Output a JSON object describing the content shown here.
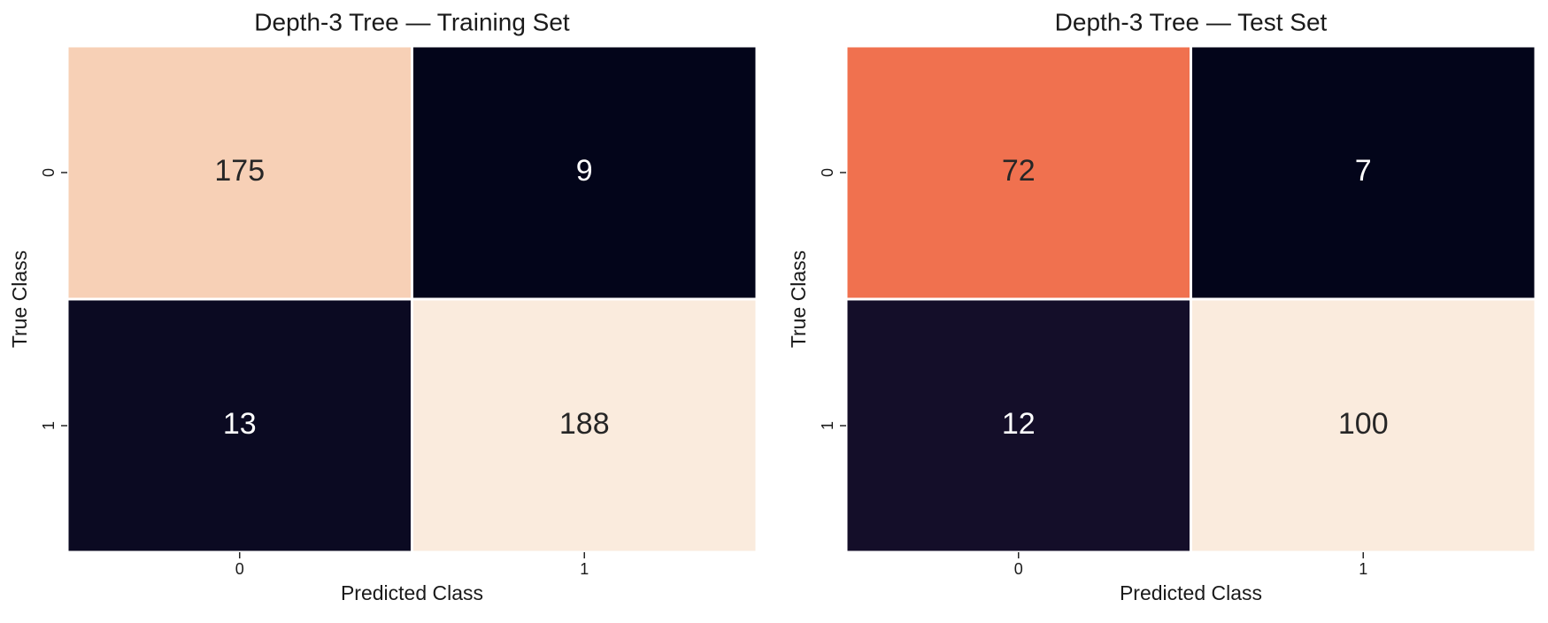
{
  "chart_data": [
    {
      "type": "heatmap",
      "title": "Depth-3 Tree — Training Set",
      "xlabel": "Predicted Class",
      "ylabel": "True Class",
      "x_categories": [
        "0",
        "1"
      ],
      "y_categories": [
        "0",
        "1"
      ],
      "values": [
        [
          175,
          9
        ],
        [
          13,
          188
        ]
      ],
      "colors": [
        [
          "#f7d0b6",
          "#03051a"
        ],
        [
          "#0b0a22",
          "#faebdd"
        ]
      ]
    },
    {
      "type": "heatmap",
      "title": "Depth-3 Tree — Test Set",
      "xlabel": "Predicted Class",
      "ylabel": "True Class",
      "x_categories": [
        "0",
        "1"
      ],
      "y_categories": [
        "0",
        "1"
      ],
      "values": [
        [
          72,
          7
        ],
        [
          12,
          100
        ]
      ],
      "colors": [
        [
          "#f0714f",
          "#03051a"
        ],
        [
          "#140e29",
          "#faebdd"
        ]
      ]
    }
  ]
}
